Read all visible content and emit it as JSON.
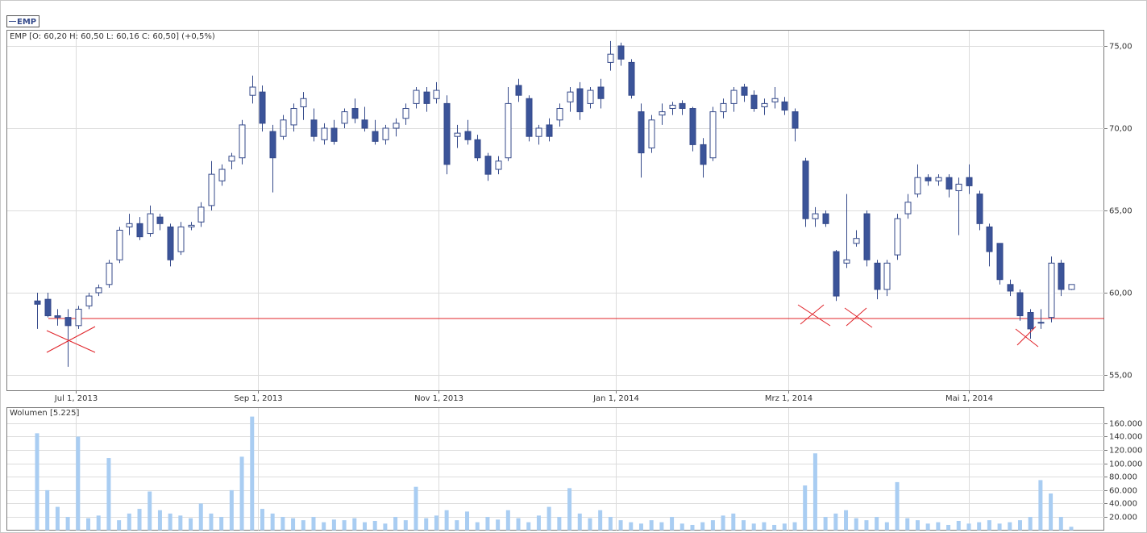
{
  "chart_data": {
    "type": "candlestick",
    "name": "EMP",
    "subtitle": "EMP [O: 60,20  H: 60,50  L: 60,16  C: 60,50] (+0,5%)",
    "x": [
      "2013-06-18",
      "2013-06-20",
      "2013-06-25",
      "2013-06-27",
      "2013-07-02",
      "2013-07-04",
      "2013-07-09",
      "2013-07-11",
      "2013-07-16",
      "2013-07-18",
      "2013-07-23",
      "2013-07-25",
      "2013-07-30",
      "2013-08-01",
      "2013-08-06",
      "2013-08-08",
      "2013-08-13",
      "2013-08-15",
      "2013-08-20",
      "2013-08-22",
      "2013-08-27",
      "2013-08-29",
      "2013-09-03",
      "2013-09-05",
      "2013-09-10",
      "2013-09-12",
      "2013-09-17",
      "2013-09-19",
      "2013-09-24",
      "2013-09-26",
      "2013-10-01",
      "2013-10-03",
      "2013-10-08",
      "2013-10-10",
      "2013-10-15",
      "2013-10-17",
      "2013-10-22",
      "2013-10-24",
      "2013-10-29",
      "2013-10-31",
      "2013-11-05",
      "2013-11-07",
      "2013-11-12",
      "2013-11-14",
      "2013-11-19",
      "2013-11-21",
      "2013-11-26",
      "2013-11-28",
      "2013-12-03",
      "2013-12-05",
      "2013-12-10",
      "2013-12-12",
      "2013-12-17",
      "2013-12-19",
      "2013-12-24",
      "2013-12-26",
      "2013-12-31",
      "2014-01-02",
      "2014-01-07",
      "2014-01-09",
      "2014-01-14",
      "2014-01-16",
      "2014-01-21",
      "2014-01-23",
      "2014-01-28",
      "2014-01-30",
      "2014-02-04",
      "2014-02-06",
      "2014-02-11",
      "2014-02-13",
      "2014-02-18",
      "2014-02-20",
      "2014-02-25",
      "2014-02-27",
      "2014-03-04",
      "2014-03-06",
      "2014-03-11",
      "2014-03-13",
      "2014-03-18",
      "2014-03-20",
      "2014-03-25",
      "2014-03-27",
      "2014-04-01",
      "2014-04-03",
      "2014-04-08",
      "2014-04-10",
      "2014-04-15",
      "2014-04-17",
      "2014-04-22",
      "2014-04-24",
      "2014-04-29",
      "2014-05-01",
      "2014-05-06",
      "2014-05-08",
      "2014-05-13",
      "2014-05-15",
      "2014-05-20",
      "2014-05-22",
      "2014-05-27",
      "2014-05-29",
      "2014-06-03",
      "2014-06-05"
    ],
    "open": [
      59.5,
      59.6,
      58.6,
      58.5,
      58.0,
      59.2,
      60.0,
      60.5,
      62,
      64,
      64.2,
      63.6,
      64.6,
      64,
      62.5,
      64,
      64.3,
      65.3,
      66.8,
      68,
      68.2,
      72,
      72.2,
      69.8,
      69.5,
      70.2,
      71.3,
      70.5,
      69.3,
      70,
      70.3,
      71.2,
      70.5,
      69.8,
      69.3,
      70,
      70.6,
      71.5,
      72.2,
      71.8,
      71.5,
      69.5,
      69.8,
      69.3,
      68.3,
      67.5,
      68.2,
      72.6,
      71.8,
      69.5,
      70.2,
      70.5,
      71.6,
      72.4,
      71.5,
      72.5,
      74,
      75.0,
      74,
      71,
      68.8,
      70.8,
      71.2,
      71.5,
      71.2,
      69,
      68.2,
      71,
      71.5,
      72.5,
      72,
      71.3,
      71.6,
      71.6,
      71,
      68,
      64.5,
      64.8,
      62.5,
      61.8,
      63,
      64.8,
      61.8,
      60.2,
      62.3,
      64.8,
      66,
      67,
      66.8,
      67,
      66.2,
      67,
      66,
      64,
      63,
      60.5,
      60,
      58.8,
      58.2,
      58.5,
      61.8,
      60.2
    ],
    "high": [
      60,
      60,
      59,
      59,
      59.2,
      60,
      60.5,
      62,
      64,
      64.8,
      64.6,
      65.3,
      64.8,
      64.2,
      64.3,
      64.3,
      65.5,
      68,
      67.8,
      68.5,
      70.5,
      73.2,
      72.6,
      70.2,
      70.8,
      71.5,
      72.2,
      71.2,
      70.3,
      70.5,
      71.2,
      71.8,
      71.3,
      70.5,
      70.2,
      70.6,
      71.5,
      72.5,
      72.5,
      72.8,
      72,
      70.2,
      70.5,
      69.6,
      68.5,
      68.3,
      72.5,
      73,
      72,
      70.2,
      70.6,
      71.5,
      72.5,
      72.8,
      72.5,
      73,
      75.3,
      75.2,
      74.2,
      71.5,
      70.8,
      71.5,
      71.6,
      71.7,
      71.3,
      69.4,
      71.3,
      71.8,
      72.5,
      72.7,
      72.3,
      71.8,
      72.5,
      71.9,
      71.2,
      68.2,
      65.2,
      65,
      62.6,
      66,
      63.8,
      65,
      62,
      62,
      64.8,
      66,
      67.8,
      67.2,
      67.2,
      67.2,
      67,
      67.8,
      66.2,
      64.2,
      63,
      60.8,
      60.2,
      59,
      59,
      62.2,
      62,
      60.5
    ],
    "low": [
      57.8,
      58.5,
      58,
      55.5,
      57.8,
      59,
      59.8,
      60.3,
      61.8,
      63.5,
      63.2,
      63.4,
      63.8,
      61.6,
      62.3,
      63.8,
      64,
      65,
      66.5,
      67.5,
      67.8,
      71.5,
      69.8,
      66.1,
      69.3,
      69.8,
      70.5,
      69.2,
      69,
      69,
      70,
      70.3,
      69.8,
      69,
      69,
      69.5,
      70.2,
      71.2,
      71,
      71.5,
      67.2,
      68.8,
      69,
      68,
      66.8,
      67.2,
      68,
      71.6,
      69.2,
      69,
      69.2,
      70.1,
      71,
      70.5,
      71.2,
      71.2,
      73.5,
      73.8,
      71.8,
      67,
      68.5,
      70.2,
      70.8,
      70.8,
      68.6,
      67,
      68,
      70.6,
      71,
      71.6,
      71,
      70.8,
      71.2,
      70.8,
      69.2,
      64,
      64,
      64,
      59.5,
      61.5,
      62.8,
      61.6,
      59.6,
      59.8,
      62,
      64.5,
      65.8,
      66.5,
      66.5,
      65.8,
      63.5,
      66,
      63.8,
      61.6,
      60.5,
      59.8,
      58.3,
      57.2,
      57.8,
      58.2,
      59.8,
      60.16
    ],
    "close": [
      59.3,
      58.6,
      58.5,
      58.0,
      59.0,
      59.8,
      60.3,
      61.8,
      63.8,
      64.2,
      63.4,
      64.8,
      64.2,
      62.0,
      64.0,
      64.1,
      65.2,
      67.2,
      67.5,
      68.3,
      70.2,
      72.5,
      70.3,
      68.2,
      70.5,
      71.2,
      71.8,
      69.5,
      70.0,
      69.2,
      71,
      70.6,
      70,
      69.2,
      70.0,
      70.3,
      71.2,
      72.3,
      71.5,
      72.3,
      67.8,
      69.7,
      69.3,
      68.2,
      67.2,
      68.0,
      71.5,
      72,
      69.5,
      70,
      69.5,
      71.2,
      72.2,
      71.0,
      72.3,
      71.8,
      74.5,
      74.2,
      72,
      68.5,
      70.5,
      71,
      71.4,
      71.2,
      69,
      67.8,
      71,
      71.5,
      72.3,
      72,
      71.2,
      71.5,
      71.8,
      71.1,
      70.0,
      64.5,
      64.8,
      64.2,
      59.8,
      62.0,
      63.3,
      62.0,
      60.2,
      61.8,
      64.5,
      65.5,
      67.0,
      66.8,
      67,
      66.3,
      66.6,
      66.5,
      64.2,
      62.5,
      60.8,
      60.1,
      58.6,
      57.8,
      58.2,
      61.8,
      60.2,
      60.5
    ],
    "up_color": "#ffffff",
    "down_color": "#3b5499",
    "line_color": "#34498a",
    "ylim": [
      54.07,
      75.98
    ],
    "yticks": [
      {
        "value": 55,
        "label": "55,00"
      },
      {
        "value": 60,
        "label": "60,00"
      },
      {
        "value": 65,
        "label": "65,00"
      },
      {
        "value": 70,
        "label": "70,00"
      },
      {
        "value": 75,
        "label": "75,00"
      }
    ],
    "xticks": [
      {
        "value": "2013-07-01",
        "label": "Jul 1, 2013"
      },
      {
        "value": "2013-09-01",
        "label": "Sep 1, 2013"
      },
      {
        "value": "2013-11-01",
        "label": "Nov 1, 2013"
      },
      {
        "value": "2014-01-01",
        "label": "Jan 1, 2014"
      },
      {
        "value": "2014-03-01",
        "label": "Mrz 1, 2014"
      },
      {
        "value": "2014-05-01",
        "label": "Mai 1, 2014"
      }
    ],
    "support_level": 58.43,
    "support_color": "#e0242a",
    "grid": true,
    "volume": {
      "title": "Wolumen [5.225]",
      "color": "#a9cdf2",
      "values": [
        145000,
        60000,
        35000,
        20000,
        140000,
        18000,
        22000,
        108000,
        15000,
        25000,
        32000,
        58000,
        30000,
        25000,
        22000,
        18000,
        40000,
        25000,
        20000,
        60000,
        110000,
        170000,
        32000,
        25000,
        20000,
        18000,
        15000,
        20000,
        12000,
        16000,
        15000,
        18000,
        12000,
        14000,
        10000,
        20000,
        15000,
        65000,
        18000,
        22000,
        30000,
        15000,
        28000,
        12000,
        20000,
        16000,
        30000,
        18000,
        12000,
        22000,
        35000,
        20000,
        63000,
        25000,
        18000,
        30000,
        20000,
        15000,
        12000,
        10000,
        15000,
        12000,
        20000,
        10000,
        8000,
        12000,
        15000,
        22000,
        25000,
        15000,
        10000,
        12000,
        8000,
        10000,
        12000,
        67000,
        115000,
        20000,
        25000,
        30000,
        18000,
        15000,
        20000,
        12000,
        72000,
        18000,
        15000,
        10000,
        12000,
        8000,
        14000,
        10000,
        12000,
        15000,
        10000,
        12000,
        15000,
        20000,
        75000,
        55000,
        20000,
        5225
      ],
      "ylim": [
        0,
        184000
      ],
      "yticks": [
        {
          "value": 20000,
          "label": "20.000"
        },
        {
          "value": 40000,
          "label": "40.000"
        },
        {
          "value": 60000,
          "label": "60.000"
        },
        {
          "value": 80000,
          "label": "80.000"
        },
        {
          "value": 100000,
          "label": "100.000"
        },
        {
          "value": 120000,
          "label": "120.000"
        },
        {
          "value": 140000,
          "label": "140.000"
        },
        {
          "value": 160000,
          "label": "160.000"
        }
      ]
    }
  }
}
